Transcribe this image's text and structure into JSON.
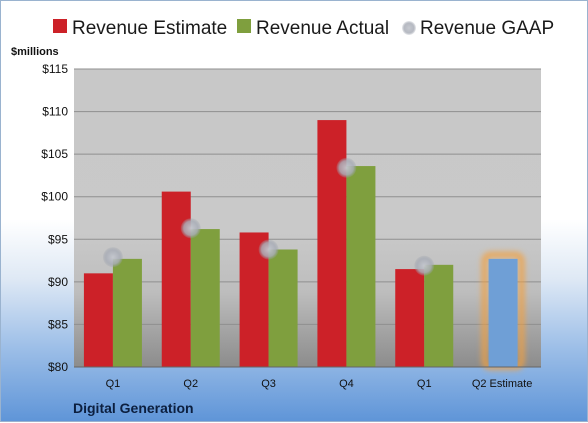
{
  "chart_data": {
    "type": "bar",
    "title": "",
    "company": "Digital Generation",
    "ylabel": "$millions",
    "ylim": [
      80,
      115
    ],
    "ytick_step": 5,
    "ytick_labels": [
      "$80",
      "$85",
      "$90",
      "$95",
      "$100",
      "$105",
      "$110",
      "$115"
    ],
    "grid": true,
    "legend_position": "top",
    "categories": [
      "Q1",
      "Q2",
      "Q3",
      "Q4",
      "Q1",
      "Q2 Estimate"
    ],
    "series": [
      {
        "name": "Revenue Estimate",
        "type": "bar",
        "color": "#cc2128",
        "values": [
          91.0,
          100.6,
          95.8,
          109.0,
          91.5,
          null
        ]
      },
      {
        "name": "Revenue Actual",
        "type": "bar",
        "color": "#7f9f3e",
        "values": [
          92.7,
          96.2,
          93.8,
          103.6,
          92.0,
          92.7
        ]
      },
      {
        "name": "Revenue GAAP",
        "type": "scatter",
        "color": "#b8bcc6",
        "values": [
          92.9,
          96.3,
          93.8,
          103.4,
          91.9,
          null
        ]
      }
    ],
    "highlight": {
      "category_index": 5,
      "bar_color": "#6f9fd6",
      "glow_color": "#f2a040"
    }
  }
}
